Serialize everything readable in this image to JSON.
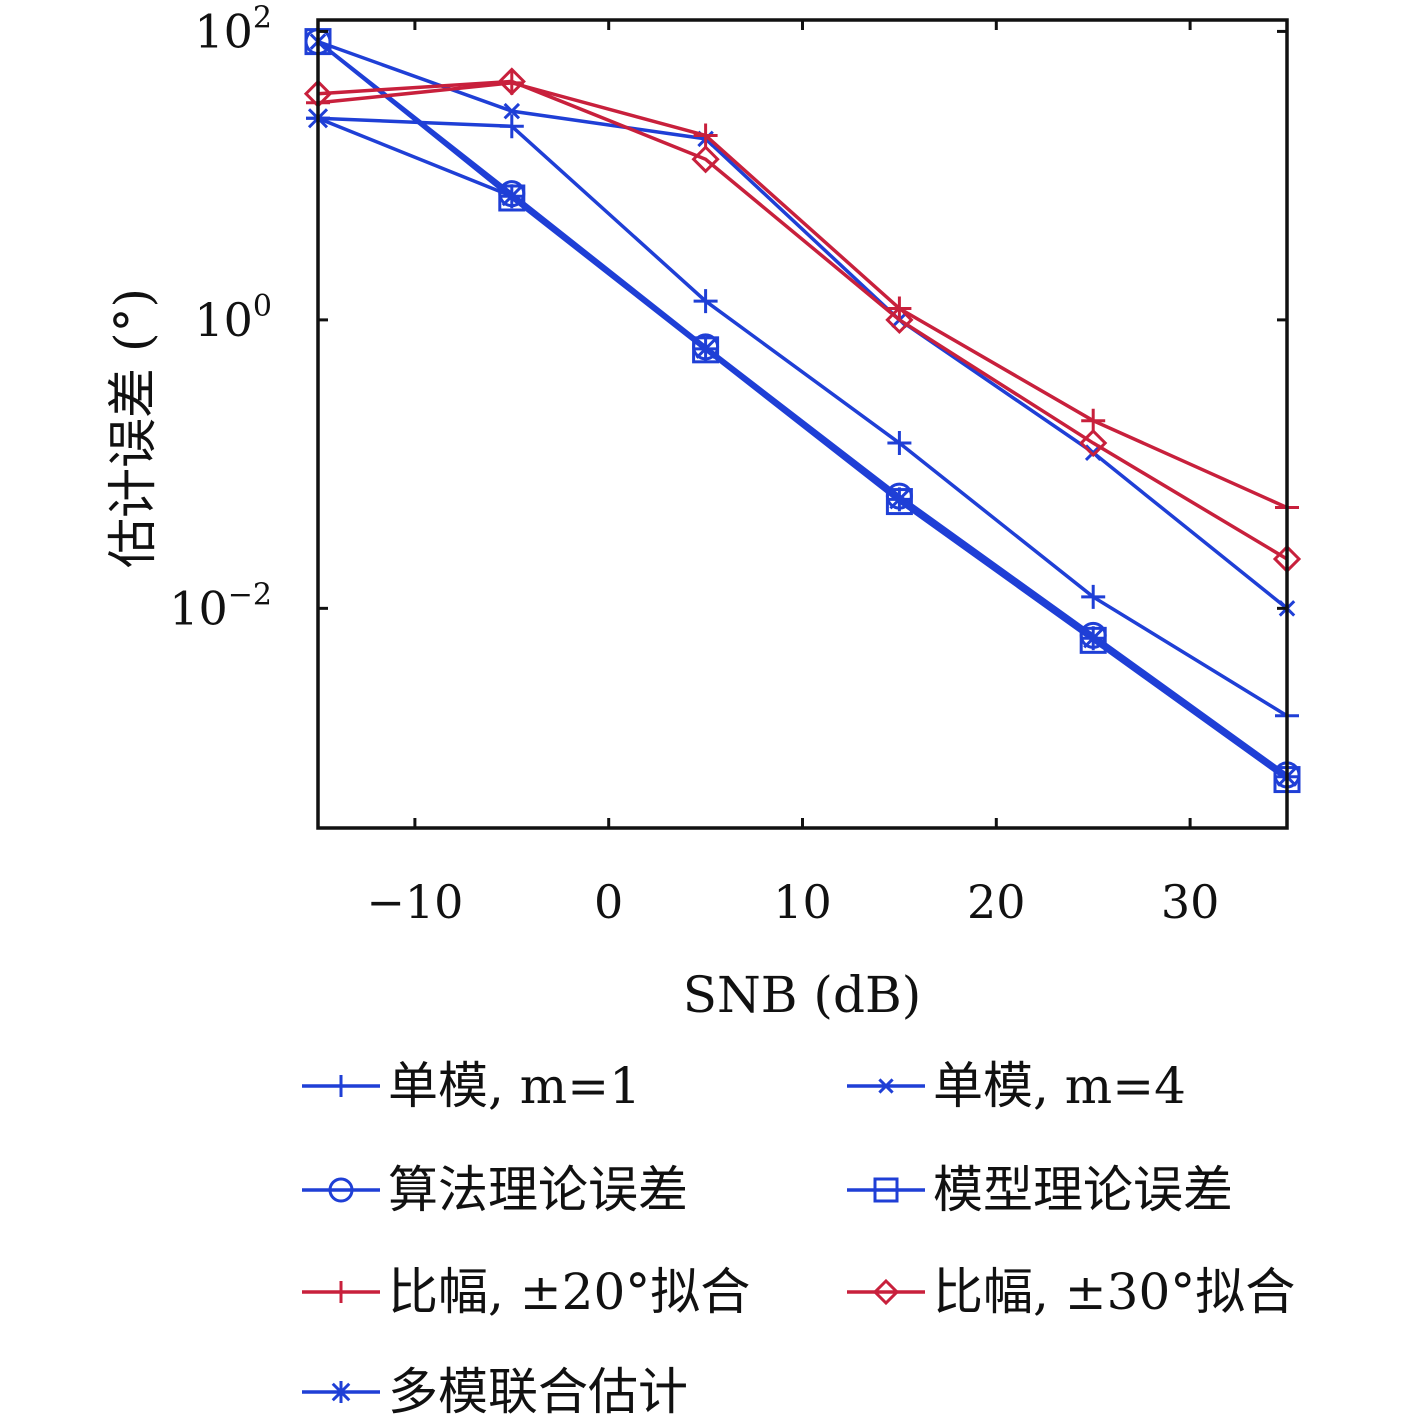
{
  "chart_data": {
    "type": "line",
    "xlabel": "SNB (dB)",
    "ylabel": "估计误差 (°)",
    "x": [
      -15,
      -5,
      5,
      15,
      25,
      35
    ],
    "xlim": [
      -15,
      35
    ],
    "xticks": [
      -10,
      0,
      10,
      20,
      30
    ],
    "xtick_labels": [
      "−10",
      "0",
      "10",
      "20",
      "30"
    ],
    "y_scale": "log",
    "ylim": [
      0.0003,
      120
    ],
    "yticks": [
      {
        "value": 100,
        "base": "10",
        "exp": "2"
      },
      {
        "value": 1,
        "base": "10",
        "exp": "0"
      },
      {
        "value": 0.01,
        "base": "10",
        "exp": "−2"
      }
    ],
    "grid": false,
    "legend_position": "below",
    "series": [
      {
        "name": "单模, m=1",
        "color": "#1f3fd6",
        "marker": "plus",
        "values": [
          25,
          22,
          1.35,
          0.14,
          0.012,
          0.0018
        ]
      },
      {
        "name": "单模, m=4",
        "color": "#1f3fd6",
        "marker": "x",
        "values": [
          85,
          28,
          18,
          1.0,
          0.12,
          0.01
        ]
      },
      {
        "name": "算法理论误差",
        "color": "#1f3fd6",
        "marker": "circle",
        "values": [
          85,
          7.5,
          0.65,
          0.06,
          0.0065,
          0.0007
        ]
      },
      {
        "name": "模型理论误差",
        "color": "#1f3fd6",
        "marker": "square",
        "values": [
          85,
          7.0,
          0.62,
          0.055,
          0.006,
          0.00065
        ]
      },
      {
        "name": "比幅, ±20°拟合",
        "color": "#c8203c",
        "marker": "plus",
        "values": [
          32,
          44,
          19,
          1.2,
          0.2,
          0.05
        ]
      },
      {
        "name": "比幅, ±30°拟合",
        "color": "#c8203c",
        "marker": "diamond",
        "values": [
          37,
          45,
          13,
          1.0,
          0.14,
          0.022
        ]
      },
      {
        "name": "多模联合估计",
        "color": "#1f3fd6",
        "marker": "star",
        "values": [
          25,
          7.2,
          0.63,
          0.057,
          0.0062,
          0.00068
        ]
      }
    ]
  }
}
